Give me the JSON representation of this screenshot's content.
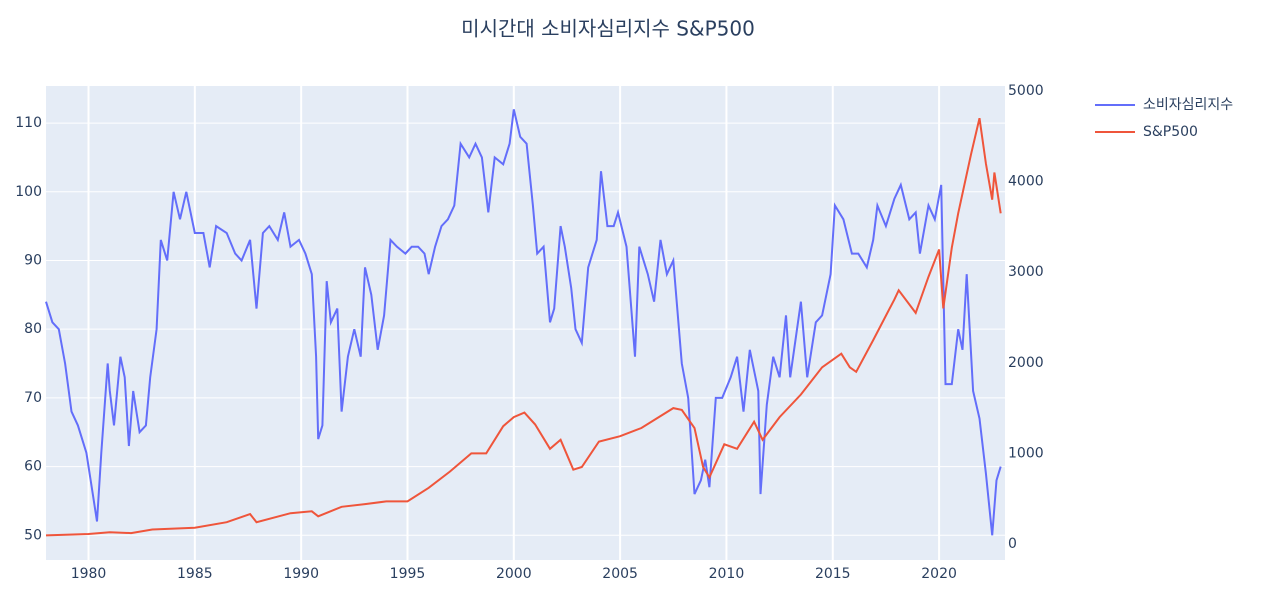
{
  "chart_data": {
    "type": "line",
    "title": "미시간대 소비자심리지수 S&P500",
    "xlim": [
      1978,
      2023.1
    ],
    "xticks": [
      1980,
      1985,
      1990,
      1995,
      2000,
      2005,
      2010,
      2015,
      2020
    ],
    "ylim": [
      46.4,
      115.4
    ],
    "yticks": [
      50,
      60,
      70,
      80,
      90,
      100,
      110
    ],
    "y2lim": [
      -177,
      5055
    ],
    "y2ticks": [
      0,
      1000,
      2000,
      3000,
      4000,
      5000
    ],
    "grid": true,
    "legend": "right",
    "series": [
      {
        "name": "소비자심리지수",
        "color": "#636efa",
        "axis": "y",
        "x": [
          1978.0,
          1978.3,
          1978.6,
          1978.9,
          1979.2,
          1979.5,
          1979.9,
          1980.2,
          1980.4,
          1980.6,
          1980.9,
          1981.0,
          1981.2,
          1981.5,
          1981.7,
          1981.9,
          1982.1,
          1982.4,
          1982.7,
          1982.9,
          1983.2,
          1983.4,
          1983.7,
          1984.0,
          1984.3,
          1984.6,
          1985.0,
          1985.4,
          1985.7,
          1986.0,
          1986.5,
          1986.9,
          1987.2,
          1987.6,
          1987.9,
          1988.2,
          1988.5,
          1988.9,
          1989.2,
          1989.5,
          1989.9,
          1990.2,
          1990.5,
          1990.7,
          1990.8,
          1991.0,
          1991.2,
          1991.4,
          1991.7,
          1991.9,
          1992.2,
          1992.5,
          1992.8,
          1993.0,
          1993.3,
          1993.6,
          1993.9,
          1994.2,
          1994.5,
          1994.9,
          1995.2,
          1995.5,
          1995.8,
          1996.0,
          1996.3,
          1996.6,
          1996.9,
          1997.2,
          1997.5,
          1997.9,
          1998.2,
          1998.5,
          1998.8,
          1999.1,
          1999.5,
          1999.8,
          2000.0,
          2000.3,
          2000.6,
          2000.9,
          2001.1,
          2001.4,
          2001.7,
          2001.9,
          2002.2,
          2002.4,
          2002.7,
          2002.9,
          2003.2,
          2003.5,
          2003.9,
          2004.1,
          2004.4,
          2004.7,
          2004.9,
          2005.3,
          2005.7,
          2005.9,
          2006.3,
          2006.6,
          2006.9,
          2007.2,
          2007.5,
          2007.9,
          2008.2,
          2008.5,
          2008.8,
          2009.0,
          2009.2,
          2009.5,
          2009.8,
          2010.2,
          2010.5,
          2010.8,
          2011.1,
          2011.5,
          2011.6,
          2011.9,
          2012.2,
          2012.5,
          2012.8,
          2013.0,
          2013.5,
          2013.8,
          2014.2,
          2014.5,
          2014.9,
          2015.1,
          2015.5,
          2015.9,
          2016.2,
          2016.6,
          2016.9,
          2017.1,
          2017.5,
          2017.9,
          2018.2,
          2018.6,
          2018.9,
          2019.1,
          2019.5,
          2019.8,
          2020.1,
          2020.3,
          2020.6,
          2020.9,
          2021.1,
          2021.3,
          2021.6,
          2021.9,
          2022.2,
          2022.5,
          2022.7,
          2022.9
        ],
        "values": [
          84,
          81,
          80,
          75,
          68,
          66,
          62,
          56,
          52,
          62,
          75,
          71,
          66,
          76,
          73,
          63,
          71,
          65,
          66,
          73,
          80,
          93,
          90,
          100,
          96,
          100,
          94,
          94,
          89,
          95,
          94,
          91,
          90,
          93,
          83,
          94,
          95,
          93,
          97,
          92,
          93,
          91,
          88,
          76,
          64,
          66,
          87,
          81,
          83,
          68,
          76,
          80,
          76,
          89,
          85,
          77,
          82,
          93,
          92,
          91,
          92,
          92,
          91,
          88,
          92,
          95,
          96,
          98,
          107,
          105,
          107,
          105,
          97,
          105,
          104,
          107,
          112,
          108,
          107,
          98,
          91,
          92,
          81,
          83,
          95,
          92,
          86,
          80,
          78,
          89,
          93,
          103,
          95,
          95,
          97,
          92,
          76,
          92,
          88,
          84,
          93,
          88,
          90,
          75,
          70,
          56,
          58,
          61,
          57,
          70,
          70,
          73,
          76,
          68,
          77,
          71,
          56,
          69,
          76,
          73,
          82,
          73,
          84,
          73,
          81,
          82,
          88,
          98,
          96,
          91,
          91,
          89,
          93,
          98,
          95,
          99,
          101,
          96,
          97,
          91,
          98,
          96,
          101,
          72,
          72,
          80,
          77,
          88,
          71,
          67,
          59,
          50,
          58,
          60
        ]
      },
      {
        "name": "S&P500",
        "color": "#ef553b",
        "axis": "y2",
        "x": [
          1978.0,
          1980.0,
          1981.0,
          1982.0,
          1983.0,
          1985.0,
          1986.5,
          1987.6,
          1987.9,
          1989.5,
          1990.5,
          1990.8,
          1991.9,
          1993.0,
          1994.0,
          1995.0,
          1996.0,
          1997.0,
          1998.0,
          1998.7,
          1999.5,
          2000.0,
          2000.5,
          2001.0,
          2001.7,
          2002.2,
          2002.8,
          2003.2,
          2004.0,
          2005.0,
          2006.0,
          2007.5,
          2007.9,
          2008.5,
          2008.9,
          2009.2,
          2009.9,
          2010.5,
          2011.3,
          2011.7,
          2012.5,
          2013.5,
          2014.5,
          2015.4,
          2015.8,
          2016.1,
          2016.9,
          2017.9,
          2018.1,
          2018.9,
          2019.5,
          2020.0,
          2020.2,
          2020.6,
          2020.9,
          2021.5,
          2021.9,
          2022.2,
          2022.5,
          2022.6,
          2022.9
        ],
        "values": [
          95,
          110,
          130,
          120,
          160,
          180,
          240,
          330,
          240,
          340,
          360,
          305,
          410,
          440,
          470,
          470,
          620,
          800,
          1000,
          1000,
          1300,
          1400,
          1450,
          1320,
          1050,
          1150,
          820,
          850,
          1130,
          1190,
          1280,
          1500,
          1480,
          1280,
          850,
          735,
          1100,
          1050,
          1350,
          1150,
          1400,
          1650,
          1950,
          2100,
          1950,
          1900,
          2250,
          2700,
          2800,
          2550,
          2950,
          3250,
          2600,
          3270,
          3650,
          4300,
          4700,
          4200,
          3800,
          4100,
          3650
        ]
      }
    ]
  }
}
